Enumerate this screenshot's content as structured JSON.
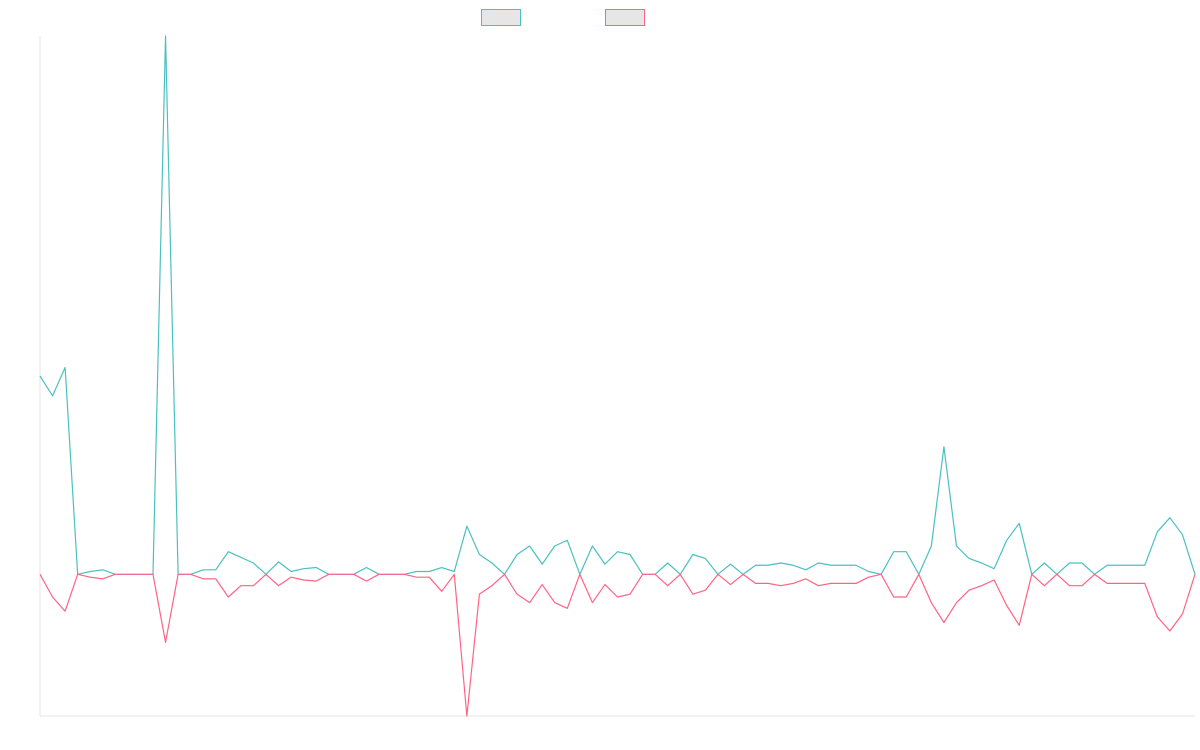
{
  "chart_data": {
    "type": "line",
    "title": "",
    "xlabel": "",
    "ylabel": "",
    "grid": false,
    "legend_position": "top-center",
    "x_count": 93,
    "ylim": [
      -25,
      95
    ],
    "series": [
      {
        "color": "#4bc0c0",
        "values": [
          35,
          31.5,
          36.5,
          0,
          0.5,
          0.8,
          0,
          0,
          0,
          0,
          95,
          0,
          0,
          0.8,
          0.8,
          4,
          3,
          2,
          0,
          2.2,
          0.5,
          1,
          1.2,
          0,
          0,
          0,
          1.2,
          0,
          0,
          0,
          0.5,
          0.5,
          1.2,
          0.5,
          8.5,
          3.5,
          2,
          0,
          3.5,
          5,
          1.8,
          5,
          6,
          0,
          5,
          1.8,
          4,
          3.5,
          0,
          0,
          2,
          0,
          3.5,
          2.8,
          0,
          1.8,
          0,
          1.6,
          1.6,
          2,
          1.6,
          0.8,
          2,
          1.6,
          1.6,
          1.6,
          0.5,
          0,
          4,
          4,
          0,
          5,
          22.5,
          5,
          2.8,
          2,
          1,
          6,
          9,
          0,
          2,
          0,
          2,
          2,
          0,
          1.6,
          1.6,
          1.6,
          1.6,
          7.5,
          10,
          7,
          0
        ]
      },
      {
        "color": "#ff6384",
        "values": [
          0,
          -4,
          -6.5,
          0,
          -0.5,
          -0.8,
          0,
          0,
          0,
          0,
          -12,
          0,
          0,
          -0.8,
          -0.8,
          -4,
          -2,
          -2,
          0,
          -2,
          -0.5,
          -1,
          -1.2,
          0,
          0,
          0,
          -1.2,
          0,
          0,
          0,
          -0.5,
          -0.5,
          -3,
          0,
          -25,
          -3.5,
          -2,
          0,
          -3.5,
          -5,
          -1.8,
          -5,
          -6,
          0,
          -5,
          -1.8,
          -4,
          -3.5,
          0,
          0,
          -2,
          0,
          -3.5,
          -2.8,
          0,
          -1.8,
          0,
          -1.6,
          -1.6,
          -2,
          -1.6,
          -0.8,
          -2,
          -1.6,
          -1.6,
          -1.6,
          -0.5,
          0,
          -4,
          -4,
          0,
          -5,
          -8.5,
          -5,
          -2.8,
          -2,
          -1,
          -5.5,
          -9,
          0,
          -2,
          0,
          -2,
          -2,
          0,
          -1.6,
          -1.6,
          -1.6,
          -1.6,
          -7.5,
          -10,
          -7,
          0
        ]
      }
    ]
  }
}
